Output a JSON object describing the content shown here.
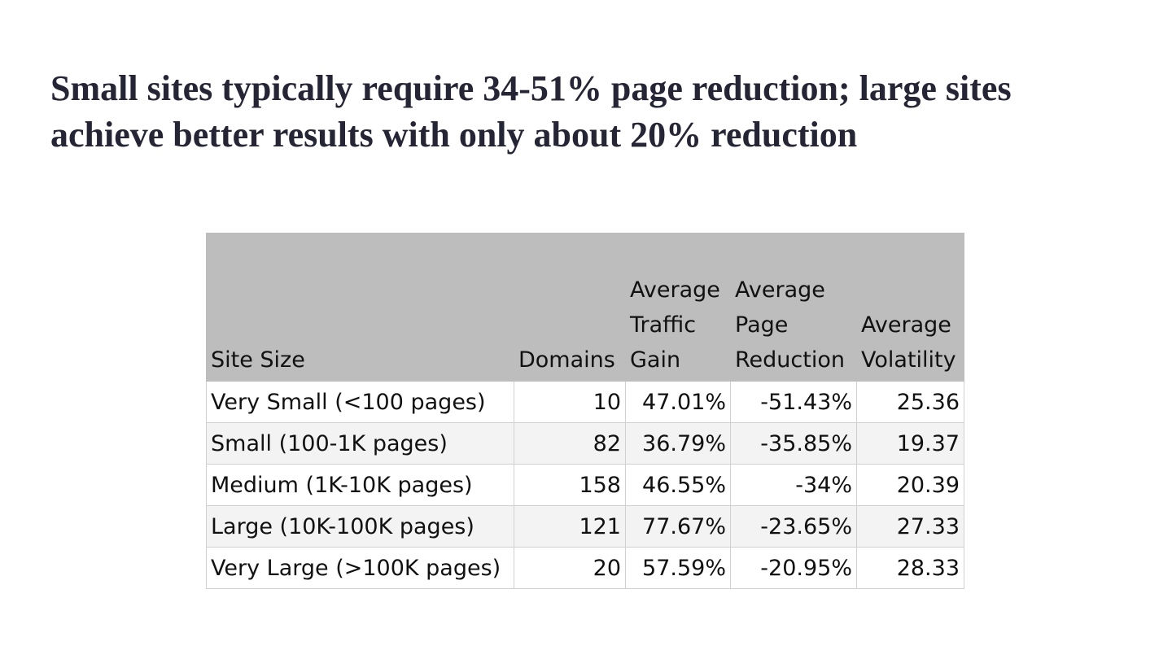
{
  "title": "Small sites typically require 34-51% page reduction; large sites achieve better results with only about 20% reduction",
  "table": {
    "headers": [
      {
        "lines": [
          "Site Size"
        ]
      },
      {
        "lines": [
          "Domains"
        ]
      },
      {
        "lines": [
          "Average",
          "Traffic",
          "Gain"
        ]
      },
      {
        "lines": [
          "Average",
          "Page",
          "Reduction"
        ]
      },
      {
        "lines": [
          "Average",
          "Volatility"
        ]
      }
    ],
    "rows": [
      {
        "site_size": "Very Small (<100 pages)",
        "domains": "10",
        "avg_traffic_gain": "47.01%",
        "avg_page_reduction": "-51.43%",
        "avg_volatility": "25.36"
      },
      {
        "site_size": "Small (100-1K pages)",
        "domains": "82",
        "avg_traffic_gain": "36.79%",
        "avg_page_reduction": "-35.85%",
        "avg_volatility": "19.37"
      },
      {
        "site_size": "Medium (1K-10K pages)",
        "domains": "158",
        "avg_traffic_gain": "46.55%",
        "avg_page_reduction": "-34%",
        "avg_volatility": "20.39"
      },
      {
        "site_size": "Large (10K-100K pages)",
        "domains": "121",
        "avg_traffic_gain": "77.67%",
        "avg_page_reduction": "-23.65%",
        "avg_volatility": "27.33"
      },
      {
        "site_size": "Very Large (>100K pages)",
        "domains": "20",
        "avg_traffic_gain": "57.59%",
        "avg_page_reduction": "-20.95%",
        "avg_volatility": "28.33"
      }
    ]
  }
}
